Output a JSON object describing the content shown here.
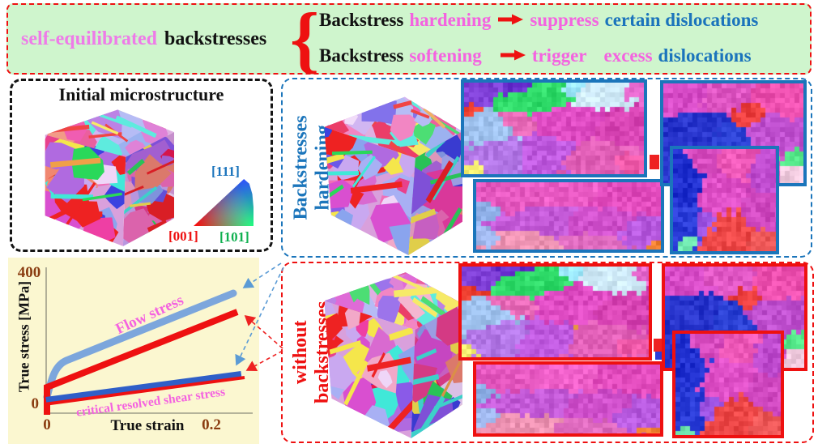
{
  "banner": {
    "lead_accent": "self-equilibrated",
    "lead_main": "backstresses",
    "row1": {
      "subject": "Backstress",
      "mode": "hardening",
      "effect": "suppress",
      "object": "certain dislocations"
    },
    "row2": {
      "subject": "Backstress",
      "mode": "softening",
      "effect": "trigger",
      "qualifier": "excess",
      "object": "dislocations"
    }
  },
  "microstructure": {
    "title": "Initial microstructure",
    "ipf": {
      "top": "[111]",
      "bottom_left": "[001]",
      "bottom_right": "[101]"
    }
  },
  "chart": {
    "ylabel": "True stress [MPa]",
    "xlabel": "True strain",
    "ticks": {
      "y_top": "400",
      "y_bottom": "0",
      "x_left": "0",
      "x_right": "0.2"
    },
    "flow_label": "Flow stress",
    "crss_label": "critical resolved shear stress"
  },
  "chart_data": {
    "type": "line",
    "xlabel": "True strain",
    "ylabel": "True stress [MPa]",
    "xlim": [
      0,
      0.25
    ],
    "ylim": [
      0,
      400
    ],
    "x_ticks": [
      0,
      0.2
    ],
    "y_ticks": [
      0,
      400
    ],
    "grid": false,
    "legend_position": "inline-annotations",
    "series": [
      {
        "name": "Flow stress (backstress hardening)",
        "color": "#7ca6dc",
        "x": [
          0,
          0.005,
          0.02,
          0.24
        ],
        "y": [
          0,
          100,
          150,
          330
        ]
      },
      {
        "name": "Flow stress (without backstresses)",
        "color": "#ee1111",
        "x": [
          0,
          0,
          0.24
        ],
        "y": [
          0,
          80,
          280
        ]
      },
      {
        "name": "Critical resolved shear stress (backstress hardening)",
        "color": "#2f5fc8",
        "x": [
          0,
          0.24
        ],
        "y": [
          35,
          110
        ]
      },
      {
        "name": "Critical resolved shear stress (without backstresses)",
        "color": "#ee1111",
        "x": [
          0,
          0.24
        ],
        "y": [
          30,
          105
        ]
      }
    ],
    "annotations": [
      "Flow stress",
      "critical resolved shear stress"
    ]
  },
  "panels": {
    "hardening": {
      "line1": "Backstresses",
      "line2": "hardening",
      "color": "#1b75bb"
    },
    "without": {
      "line1": "without",
      "line2": "backstresses",
      "color": "#ee1010"
    }
  },
  "colors": {
    "banner_bg": "#cff5cd",
    "banner_border": "#ee1111",
    "accent_violet": "#ee7be8",
    "accent_magenta": "#f463e0",
    "accent_blue": "#1b74bc",
    "arrow_red": "#ee1111",
    "plot_bg": "#fbf7d0",
    "tick_brown": "#8a3c10",
    "flow_blue": "#7ca6dc",
    "crss_blue": "#2f5fc8",
    "curve_red": "#ee1111",
    "panel_blue": "#1b75bb",
    "panel_red": "#ee1010",
    "grain_palette": [
      "#e8418c",
      "#f06fb8",
      "#ee3fa4",
      "#d94fd0",
      "#b06ae0",
      "#8a5ae8",
      "#6a58e8",
      "#3c42e0",
      "#8aa4ee",
      "#a8b0f4",
      "#c9a8f0",
      "#f2a8c8",
      "#ee2222",
      "#e8184c",
      "#2ad85a",
      "#f5e64b",
      "#40e8d8",
      "#f08770",
      "#efd6f8",
      "#d96ad0"
    ],
    "twin_palette": [
      "#ee2222",
      "#2ad85a",
      "#f5e64b",
      "#f0a048",
      "#40e8d8"
    ]
  }
}
